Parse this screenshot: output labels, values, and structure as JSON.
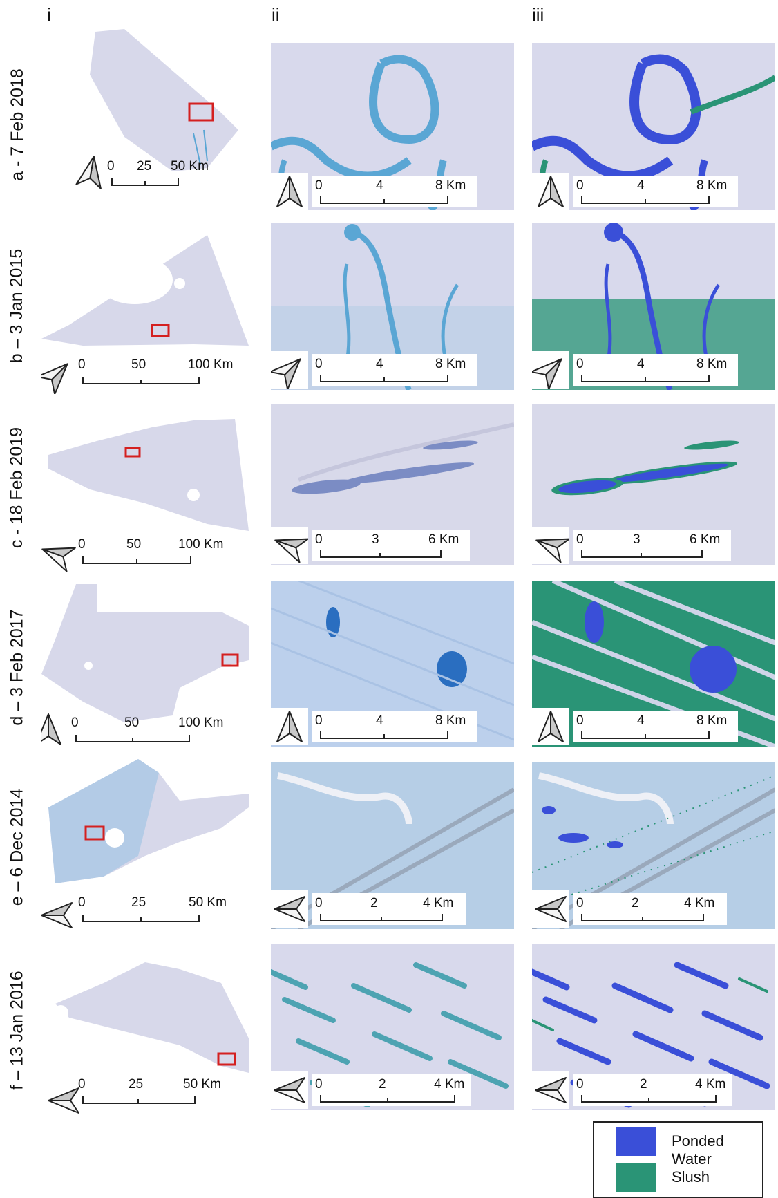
{
  "columns": [
    "i",
    "ii",
    "iii"
  ],
  "rows": [
    {
      "label": "a - 7 Feb 2018",
      "scale_overview": [
        "0",
        "25",
        "50 Km"
      ],
      "scale_detail": [
        "0",
        "4",
        "8 Km"
      ]
    },
    {
      "label": "b – 3 Jan 2015",
      "scale_overview": [
        "0",
        "50",
        "100 Km"
      ],
      "scale_detail": [
        "0",
        "4",
        "8 Km"
      ]
    },
    {
      "label": "c - 18 Feb 2019",
      "scale_overview": [
        "0",
        "50",
        "100 Km"
      ],
      "scale_detail": [
        "0",
        "3",
        "6 Km"
      ]
    },
    {
      "label": "d – 3 Feb 2017",
      "scale_overview": [
        "0",
        "50",
        "100 Km"
      ],
      "scale_detail": [
        "0",
        "4",
        "8 Km"
      ]
    },
    {
      "label": "e – 6 Dec 2014",
      "scale_overview": [
        "0",
        "25",
        "50 Km"
      ],
      "scale_detail": [
        "0",
        "2",
        "4 Km"
      ]
    },
    {
      "label": "f – 13 Jan 2016",
      "scale_overview": [
        "0",
        "25",
        "50 Km"
      ],
      "scale_detail": [
        "0",
        "2",
        "4 Km"
      ]
    }
  ],
  "legend": [
    {
      "label": "Ponded Water",
      "color": "#3a4fd8"
    },
    {
      "label": "Slush",
      "color": "#2a9476"
    }
  ],
  "colors": {
    "ice": "#d7d8ea",
    "melt": "#5aa6d4",
    "ponded": "#3a4fd8",
    "slush": "#2a9476",
    "inset_box": "#d42020"
  },
  "icons": [
    "north-arrow-icon"
  ]
}
